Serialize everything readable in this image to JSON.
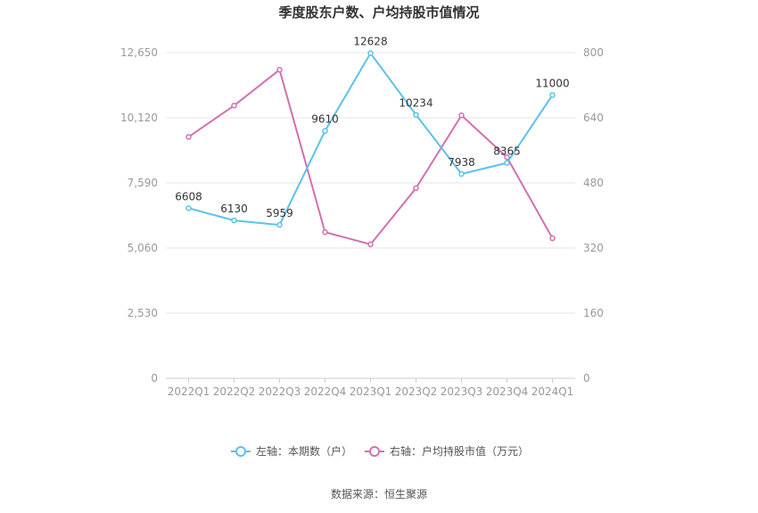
{
  "chart_data": {
    "type": "line",
    "title": "季度股东户数、户均持股市值情况",
    "categories": [
      "2022Q1",
      "2022Q2",
      "2022Q3",
      "2022Q4",
      "2023Q1",
      "2023Q2",
      "2023Q3",
      "2023Q4",
      "2024Q1"
    ],
    "left_axis": {
      "min": 0,
      "max": 12650,
      "ticks": [
        "0",
        "2,530",
        "5,060",
        "7,590",
        "10,120",
        "12,650"
      ]
    },
    "right_axis": {
      "min": 0,
      "max": 800,
      "ticks": [
        "0",
        "160",
        "320",
        "480",
        "640",
        "800"
      ]
    },
    "series": [
      {
        "name": "左轴：本期数（户）",
        "axis": "left",
        "color": "#5bc1ec",
        "values": [
          6608,
          6130,
          5959,
          9610,
          12628,
          10234,
          7938,
          8365,
          11000
        ],
        "labels": [
          "6608",
          "6130",
          "5959",
          "9610",
          "12628",
          "10234",
          "7938",
          "8365",
          "11000"
        ]
      },
      {
        "name": "右轴：户均持股市值（万元）",
        "axis": "right",
        "color": "#d36fb1",
        "values": [
          593,
          670,
          758,
          359,
          329,
          467,
          646,
          543,
          344
        ]
      }
    ],
    "grid": true,
    "legend": "bottom",
    "source": "数据来源：恒生聚源"
  }
}
